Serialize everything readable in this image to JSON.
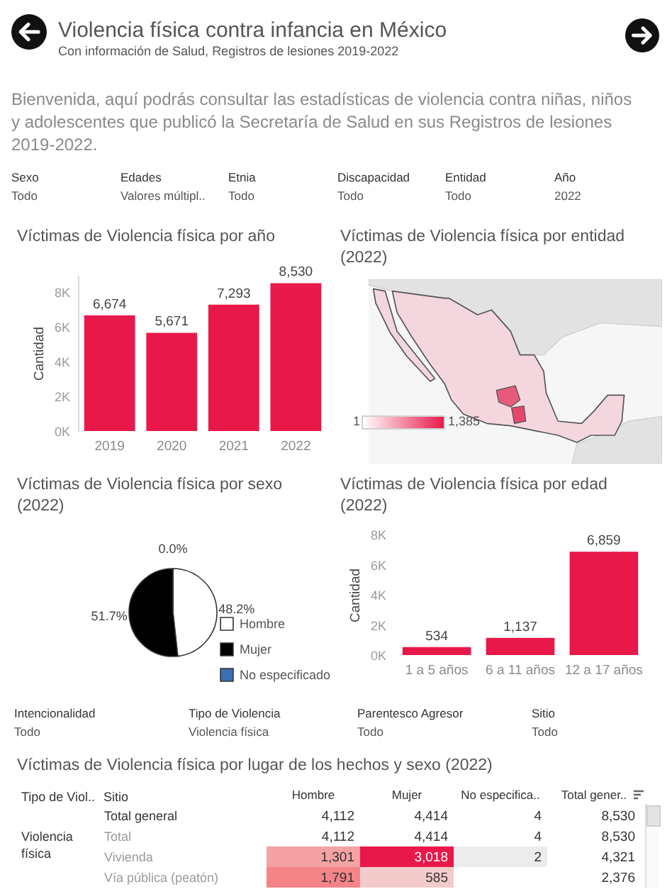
{
  "chart_data": [
    {
      "type": "other",
      "title": "Violencia física contra infancia en México",
      "subtitle": "Con información de Salud, Registros de lesiones 2019-2022",
      "annotations": [
        "Bienvenida, aquí podrás consultar las estadísticas de violencia contra niñas, niños y adolescentes que publicó la Secretaría de Salud en sus Registros de lesiones 2019-2022."
      ]
    },
    {
      "type": "other",
      "annotations": [
        "Sexo",
        "Todo",
        "Edades",
        "Valores múltipl..",
        "Etnia",
        "Todo",
        "Discapacidad",
        "Todo",
        "Entidad",
        "Todo",
        "Año",
        "2022"
      ]
    },
    {
      "type": "bar",
      "title": "Víctimas de Violencia física por año",
      "ylabel": "Cantidad",
      "categories": [
        "2019",
        "2020",
        "2021",
        "2022"
      ],
      "values": [
        6674,
        5671,
        7293,
        8530
      ],
      "value_labels": [
        "6,674",
        "5,671",
        "7,293",
        "8,530"
      ],
      "color": "#e8194a",
      "ylim": [
        0,
        9000
      ],
      "yticks": [
        {
          "value": 0,
          "label": "0K"
        },
        {
          "value": 2000,
          "label": "2K"
        },
        {
          "value": 4000,
          "label": "4K"
        },
        {
          "value": 6000,
          "label": "6K"
        },
        {
          "value": 8000,
          "label": "8K"
        }
      ]
    },
    {
      "type": "other",
      "title": "Víctimas de Violencia física por entidad (2022)",
      "annotations": [
        "1",
        "1,385"
      ]
    },
    {
      "type": "pie",
      "title": "Víctimas de Violencia física por sexo (2022)",
      "categories": [
        "Hombre",
        "Mujer",
        "No especificado"
      ],
      "values": [
        48.2,
        51.7,
        0.0
      ],
      "value_labels": [
        "48.2%",
        "51.7%",
        "0.0%"
      ],
      "colors": [
        "#ffffff",
        "#000000",
        "#3a6fb7"
      ],
      "legend": "right"
    },
    {
      "type": "bar",
      "title": "Víctimas de Violencia física por edad (2022)",
      "ylabel": "Cantidad",
      "categories": [
        "1 a 5 años",
        "6 a 11 años",
        "12 a 17 años"
      ],
      "values": [
        534,
        1137,
        6859
      ],
      "value_labels": [
        "534",
        "1,137",
        "6,859"
      ],
      "color": "#e8194a",
      "ylim": [
        0,
        8000
      ],
      "yticks": [
        {
          "value": 0,
          "label": "0K"
        },
        {
          "value": 2000,
          "label": "2K"
        },
        {
          "value": 4000,
          "label": "4K"
        },
        {
          "value": 6000,
          "label": "6K"
        },
        {
          "value": 8000,
          "label": "8K"
        }
      ]
    },
    {
      "type": "other",
      "annotations": [
        "Intencionalidad",
        "Todo",
        "Tipo de Violencia",
        "Violencia física",
        "Parentesco Agresor",
        "Todo",
        "Sitio",
        "Todo"
      ]
    },
    {
      "type": "heatmap",
      "title": "Víctimas de Violencia física por lugar de los hechos y sexo (2022)",
      "categories": [
        "Hombre",
        "Mujer",
        "No especifica..",
        "Total gener.."
      ],
      "y_categories": [
        "Total general",
        "Total",
        "Vivienda",
        "Vía pública (peatón)"
      ],
      "cells": [
        [
          null,
          null,
          null,
          null
        ],
        [
          null,
          null,
          null,
          null
        ],
        [
          1301,
          3018,
          2,
          null
        ],
        [
          1791,
          585,
          null,
          null
        ]
      ],
      "cell_labels": [
        [
          "4,112",
          "4,414",
          "4",
          "8,530"
        ],
        [
          "4,112",
          "4,414",
          "4",
          "8,530"
        ],
        [
          "1,301",
          "3,018",
          "2",
          "4,321"
        ],
        [
          "1,791",
          "585",
          null,
          "2,376"
        ]
      ],
      "annotations": [
        "Tipo de Viol..",
        "Sitio",
        "Violencia física"
      ]
    }
  ]
}
